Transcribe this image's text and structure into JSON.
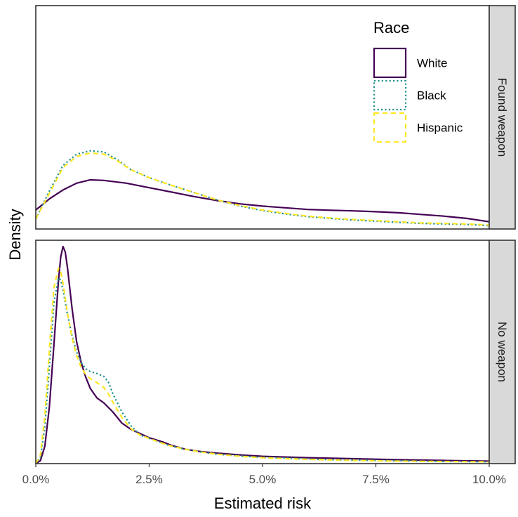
{
  "chart_data": {
    "type": "line",
    "xlabel": "Estimated risk",
    "ylabel": "Density",
    "xlim": [
      0,
      10
    ],
    "x_ticks": [
      "0.0%",
      "2.5%",
      "5.0%",
      "7.5%",
      "10.0%"
    ],
    "x_tick_values": [
      0,
      2.5,
      5,
      7.5,
      10
    ],
    "legend": {
      "title": "Race",
      "position": "top-right",
      "entries": [
        {
          "name": "White",
          "color": "#440154",
          "dash": "solid"
        },
        {
          "name": "Black",
          "color": "#21908C",
          "dash": "dotted"
        },
        {
          "name": "Hispanic",
          "color": "#FDE725",
          "dash": "dashed"
        }
      ]
    },
    "panels": [
      {
        "strip": "Found weapon",
        "ylim": [
          0,
          0.2
        ],
        "series": [
          {
            "name": "White",
            "x": [
              0,
              0.3,
              0.6,
              0.9,
              1.2,
              1.5,
              2.0,
              2.5,
              3.0,
              3.5,
              4.0,
              4.5,
              5.0,
              5.5,
              6.0,
              6.5,
              7.0,
              7.5,
              8.0,
              8.5,
              9.0,
              9.5,
              10.0
            ],
            "y": [
              0.017,
              0.027,
              0.035,
              0.041,
              0.044,
              0.0435,
              0.041,
              0.037,
              0.033,
              0.029,
              0.0255,
              0.0225,
              0.0205,
              0.019,
              0.0175,
              0.0168,
              0.0162,
              0.0155,
              0.0145,
              0.013,
              0.0115,
              0.0095,
              0.0065
            ]
          },
          {
            "name": "Black",
            "x": [
              0,
              0.3,
              0.6,
              0.9,
              1.2,
              1.5,
              1.8,
              2.1,
              2.5,
              3.0,
              3.5,
              4.0,
              4.5,
              5.0,
              5.5,
              6.0,
              6.5,
              7.0,
              7.5,
              8.0,
              8.5,
              9.0,
              9.5,
              10.0
            ],
            "y": [
              0.009,
              0.034,
              0.057,
              0.067,
              0.07,
              0.069,
              0.062,
              0.053,
              0.046,
              0.039,
              0.0325,
              0.026,
              0.0205,
              0.0165,
              0.0135,
              0.011,
              0.0095,
              0.008,
              0.007,
              0.006,
              0.005,
              0.0045,
              0.004,
              0.003
            ]
          },
          {
            "name": "Hispanic",
            "x": [
              0,
              0.3,
              0.6,
              0.9,
              1.2,
              1.5,
              1.8,
              2.1,
              2.5,
              3.0,
              3.5,
              4.0,
              4.5,
              5.0,
              5.5,
              6.0,
              6.5,
              7.0,
              7.5,
              8.0,
              8.5,
              9.0,
              9.5,
              10.0
            ],
            "y": [
              0.009,
              0.032,
              0.055,
              0.065,
              0.068,
              0.067,
              0.061,
              0.053,
              0.046,
              0.039,
              0.0325,
              0.026,
              0.021,
              0.017,
              0.014,
              0.0115,
              0.0098,
              0.0085,
              0.0075,
              0.0065,
              0.0055,
              0.005,
              0.0045,
              0.0035
            ]
          }
        ]
      },
      {
        "strip": "No weapon",
        "ylim": [
          0,
          0.32
        ],
        "series": [
          {
            "name": "White",
            "x": [
              0,
              0.1,
              0.2,
              0.3,
              0.4,
              0.5,
              0.55,
              0.6,
              0.65,
              0.7,
              0.8,
              0.9,
              1.0,
              1.1,
              1.2,
              1.35,
              1.5,
              1.7,
              1.9,
              2.1,
              2.3,
              2.5,
              2.8,
              3.0,
              3.3,
              3.6,
              4.0,
              4.5,
              5.0,
              5.5,
              6.0,
              7.0,
              8.0,
              9.0,
              10.0
            ],
            "y": [
              0,
              0.004,
              0.025,
              0.082,
              0.17,
              0.262,
              0.296,
              0.311,
              0.303,
              0.28,
              0.222,
              0.175,
              0.145,
              0.124,
              0.108,
              0.094,
              0.087,
              0.074,
              0.058,
              0.049,
              0.043,
              0.037,
              0.031,
              0.026,
              0.0205,
              0.0175,
              0.015,
              0.0125,
              0.0105,
              0.0095,
              0.0085,
              0.007,
              0.0055,
              0.0045,
              0.0035
            ]
          },
          {
            "name": "Black",
            "x": [
              0,
              0.1,
              0.2,
              0.3,
              0.4,
              0.5,
              0.55,
              0.6,
              0.7,
              0.8,
              0.9,
              1.0,
              1.1,
              1.2,
              1.35,
              1.5,
              1.6,
              1.7,
              1.9,
              2.1,
              2.3,
              2.5,
              2.8,
              3.0,
              3.3,
              3.6,
              4.0,
              4.5,
              5.0,
              5.5,
              6.0,
              7.0,
              8.0,
              9.0,
              10.0
            ],
            "y": [
              0,
              0.008,
              0.052,
              0.14,
              0.23,
              0.266,
              0.263,
              0.249,
              0.213,
              0.183,
              0.16,
              0.145,
              0.136,
              0.132,
              0.129,
              0.125,
              0.117,
              0.1,
              0.074,
              0.054,
              0.041,
              0.036,
              0.029,
              0.025,
              0.0205,
              0.017,
              0.0135,
              0.011,
              0.009,
              0.008,
              0.0065,
              0.005,
              0.004,
              0.003,
              0.0025
            ]
          },
          {
            "name": "Hispanic",
            "x": [
              0,
              0.1,
              0.2,
              0.3,
              0.4,
              0.5,
              0.55,
              0.6,
              0.7,
              0.8,
              0.9,
              1.0,
              1.1,
              1.2,
              1.35,
              1.5,
              1.6,
              1.7,
              1.9,
              2.1,
              2.3,
              2.5,
              2.8,
              3.0,
              3.3,
              3.6,
              4.0,
              4.5,
              5.0,
              5.5,
              6.0,
              7.0,
              8.0,
              9.0,
              10.0
            ],
            "y": [
              0,
              0.012,
              0.068,
              0.165,
              0.252,
              0.28,
              0.275,
              0.258,
              0.215,
              0.18,
              0.155,
              0.138,
              0.128,
              0.122,
              0.116,
              0.109,
              0.1,
              0.088,
              0.066,
              0.05,
              0.041,
              0.036,
              0.029,
              0.025,
              0.0205,
              0.017,
              0.0135,
              0.0105,
              0.0085,
              0.007,
              0.006,
              0.0045,
              0.0035,
              0.003,
              0.0025
            ]
          }
        ]
      }
    ]
  }
}
